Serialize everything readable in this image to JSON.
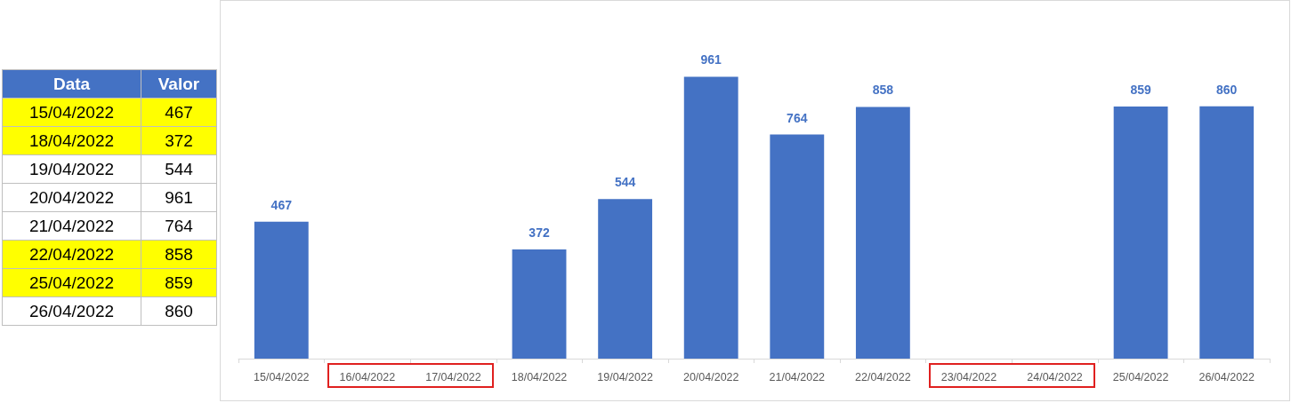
{
  "chart_data": [
    {
      "type": "other",
      "xlabel": "Data",
      "ylabel": "Valor",
      "categories": [
        "15/04/2022",
        "18/04/2022",
        "19/04/2022",
        "20/04/2022",
        "21/04/2022",
        "22/04/2022",
        "25/04/2022",
        "26/04/2022"
      ],
      "values": [
        467,
        372,
        544,
        961,
        764,
        858,
        859,
        860
      ],
      "colors": [
        "#ffff00",
        "#ffff00",
        "#ffffff",
        "#ffffff",
        "#ffffff",
        "#ffff00",
        "#ffff00",
        "#ffffff"
      ],
      "data_labels": true
    },
    {
      "type": "bar",
      "color": "#4472c4",
      "data_labels": true,
      "grid": false,
      "categories": [
        "15/04/2022",
        "16/04/2022",
        "17/04/2022",
        "18/04/2022",
        "19/04/2022",
        "20/04/2022",
        "21/04/2022",
        "22/04/2022",
        "23/04/2022",
        "24/04/2022",
        "25/04/2022",
        "26/04/2022"
      ],
      "values": [
        467,
        null,
        null,
        372,
        544,
        961,
        764,
        858,
        null,
        null,
        859,
        860
      ]
    }
  ]
}
